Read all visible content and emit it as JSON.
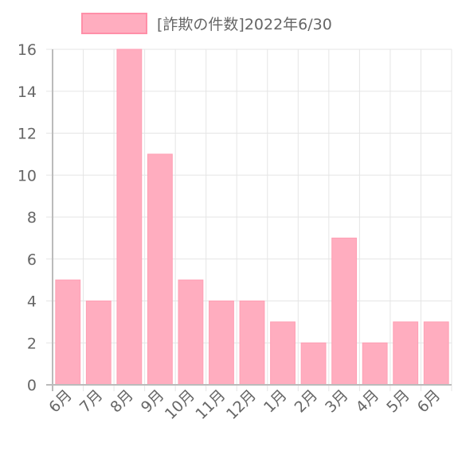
{
  "chart_data": {
    "type": "bar",
    "categories": [
      "6月",
      "7月",
      "8月",
      "9月",
      "10月",
      "11月",
      "12月",
      "1月",
      "2月",
      "3月",
      "4月",
      "5月",
      "6月"
    ],
    "series": [
      {
        "name": "[詐欺の件数]2022年6/30",
        "values": [
          5,
          4,
          16,
          11,
          5,
          4,
          4,
          3,
          2,
          7,
          2,
          3,
          3
        ]
      }
    ],
    "ylim": [
      0,
      16
    ],
    "yticks": [
      0,
      2,
      4,
      6,
      8,
      10,
      12,
      14,
      16
    ],
    "grid": true,
    "legend": "top-center",
    "colors": {
      "bar_fill": "#ffadbf",
      "bar_border": "#ff9fb4",
      "grid": "#e5e5e5",
      "axis": "#bbbbbb",
      "text": "#666666"
    }
  }
}
